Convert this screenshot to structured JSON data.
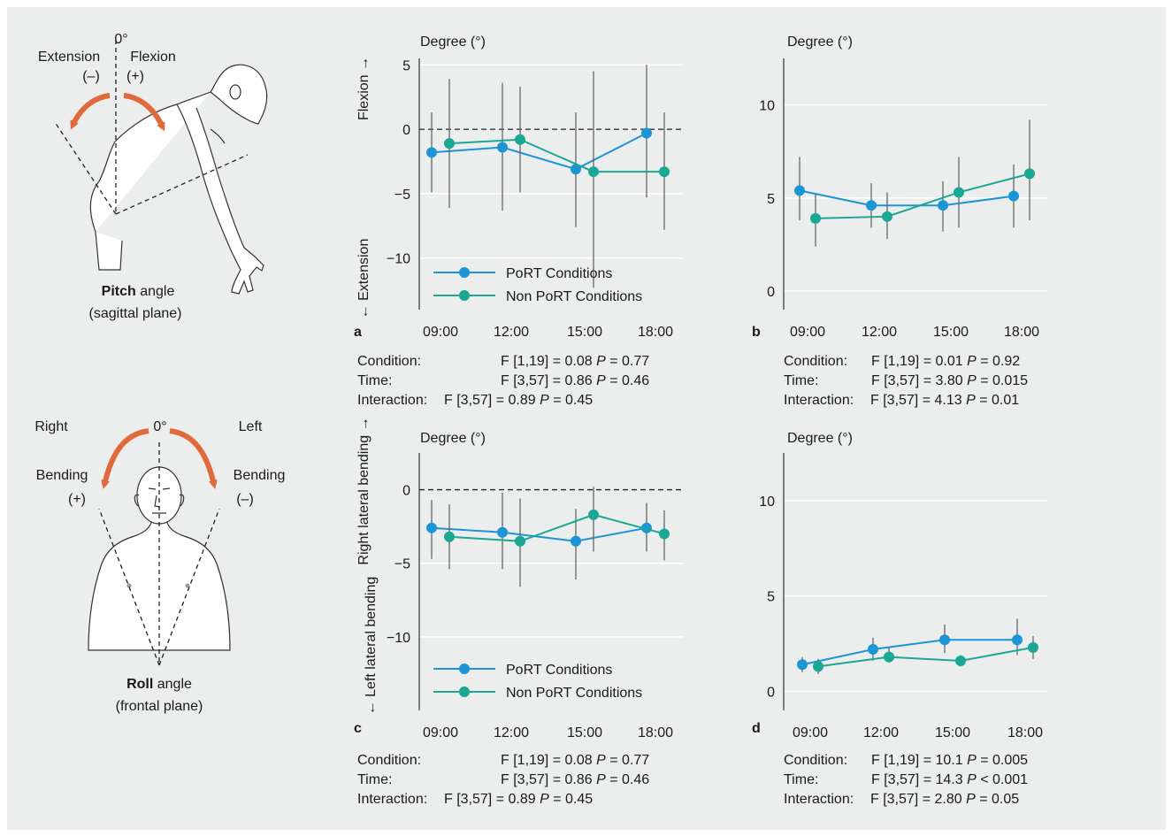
{
  "colors": {
    "port": "#1b95d6",
    "non_port": "#1aa793",
    "arrow": "#e06a3c",
    "grid": "#ffffff",
    "whisker": "#666666"
  },
  "pitch_illustration": {
    "zero_label": "0°",
    "extension_label": "Extension",
    "extension_sign": "(–)",
    "flexion_label": "Flexion",
    "flexion_sign": "(+)",
    "caption_bold": "Pitch",
    "caption_rest": " angle",
    "caption_line2": "(sagittal plane)"
  },
  "roll_illustration": {
    "zero_label": "0°",
    "right_label_1": "Right",
    "right_label_2": "Bending",
    "right_sign": "(+)",
    "left_label_1": "Left",
    "left_label_2": "Bending",
    "left_sign": "(–)",
    "caption_bold": "Roll",
    "caption_rest": " angle",
    "caption_line2": "(frontal plane)"
  },
  "chart_data": [
    {
      "id": "a",
      "type": "line",
      "panel_letter": "a",
      "ylabel": "Degree (°)",
      "y_side_label_top": "Flexion →",
      "y_side_label_bottom": "← Extension",
      "ylim": [
        -14,
        5.5
      ],
      "yticks": [
        5,
        0,
        -5,
        -10
      ],
      "categories": [
        "09:00",
        "12:00",
        "15:00",
        "18:00"
      ],
      "zero_dashed": true,
      "legend": [
        "PoRT Conditions",
        "Non PoRT Conditions"
      ],
      "series": [
        {
          "name": "PoRT Conditions",
          "values": [
            -1.8,
            -1.4,
            -3.1,
            -0.3
          ],
          "err_low": [
            -4.9,
            -6.3,
            -7.6,
            -5.3
          ],
          "err_high": [
            1.3,
            3.6,
            1.3,
            5.0
          ]
        },
        {
          "name": "Non PoRT Conditions",
          "values": [
            -1.1,
            -0.8,
            -3.3,
            -3.3
          ],
          "err_low": [
            -6.1,
            -4.9,
            -12.3,
            -7.8
          ],
          "err_high": [
            3.9,
            3.3,
            4.5,
            1.3
          ]
        }
      ],
      "stats": [
        {
          "label": "Condition:",
          "value": "F [1,19] = 0.08 ",
          "p": "P",
          "pval": " = 0.77"
        },
        {
          "label": "Time:",
          "value": "F [3,57] = 0.86 ",
          "p": "P",
          "pval": " = 0.46"
        },
        {
          "label": "Interaction:",
          "value": "F [3,57] = 0.89 ",
          "p": "P",
          "pval": " = 0.45"
        }
      ]
    },
    {
      "id": "b",
      "type": "line",
      "panel_letter": "b",
      "ylabel": "Degree (°)",
      "ylim": [
        -1,
        12.5
      ],
      "yticks": [
        10,
        5,
        0
      ],
      "categories": [
        "09:00",
        "12:00",
        "15:00",
        "18:00"
      ],
      "zero_dashed": false,
      "series": [
        {
          "name": "PoRT Conditions",
          "values": [
            5.4,
            4.6,
            4.6,
            5.1
          ],
          "err_low": [
            3.8,
            3.4,
            3.2,
            3.4
          ],
          "err_high": [
            7.2,
            5.8,
            5.9,
            6.8
          ]
        },
        {
          "name": "Non PoRT Conditions",
          "values": [
            3.9,
            4.0,
            5.3,
            6.3
          ],
          "err_low": [
            2.4,
            2.8,
            3.4,
            3.8
          ],
          "err_high": [
            5.2,
            5.3,
            7.2,
            9.2
          ]
        }
      ],
      "stats": [
        {
          "label": "Condition:",
          "value": "F [1,19] = 0.01 ",
          "p": "P",
          "pval": " = 0.92"
        },
        {
          "label": "Time:",
          "value": "F [3,57] = 3.80 ",
          "p": "P",
          "pval": " = 0.015"
        },
        {
          "label": "Interaction:",
          "value": "F [3,57] = 4.13 ",
          "p": "P",
          "pval": " = 0.01"
        }
      ]
    },
    {
      "id": "c",
      "type": "line",
      "panel_letter": "c",
      "ylabel": "Degree (°)",
      "y_side_label_top": "Right lateral bending →",
      "y_side_label_bottom": "← Left lateral bending",
      "ylim": [
        -15,
        2.5
      ],
      "yticks": [
        0,
        -5,
        -10
      ],
      "categories": [
        "09:00",
        "12:00",
        "15:00",
        "18:00"
      ],
      "zero_dashed": true,
      "legend": [
        "PoRT Conditions",
        "Non PoRT Conditions"
      ],
      "series": [
        {
          "name": "PoRT Conditions",
          "values": [
            -2.6,
            -2.9,
            -3.5,
            -2.6
          ],
          "err_low": [
            -4.7,
            -5.4,
            -6.1,
            -4.2
          ],
          "err_high": [
            -0.7,
            -0.2,
            -1.3,
            -0.9
          ]
        },
        {
          "name": "Non PoRT Conditions",
          "values": [
            -3.2,
            -3.5,
            -1.7,
            -3.0
          ],
          "err_low": [
            -5.4,
            -6.6,
            -4.2,
            -4.8
          ],
          "err_high": [
            -1.0,
            -0.6,
            0.2,
            -1.4
          ]
        }
      ],
      "stats": [
        {
          "label": "Condition:",
          "value": "F [1,19] = 0.08 ",
          "p": "P",
          "pval": " = 0.77"
        },
        {
          "label": "Time:",
          "value": "F [3,57] = 0.86 ",
          "p": "P",
          "pval": " = 0.46"
        },
        {
          "label": "Interaction:",
          "value": "F [3,57] = 0.89 ",
          "p": "P",
          "pval": " = 0.45"
        }
      ]
    },
    {
      "id": "d",
      "type": "line",
      "panel_letter": "d",
      "ylabel": "Degree (°)",
      "ylim": [
        -1,
        12.5
      ],
      "yticks": [
        10,
        5,
        0
      ],
      "categories": [
        "09:00",
        "12:00",
        "15:00",
        "18:00"
      ],
      "zero_dashed": false,
      "series": [
        {
          "name": "PoRT Conditions",
          "values": [
            1.4,
            2.2,
            2.7,
            2.7
          ],
          "err_low": [
            1.0,
            1.6,
            2.0,
            1.9
          ],
          "err_high": [
            1.8,
            2.8,
            3.5,
            3.8
          ]
        },
        {
          "name": "Non PoRT Conditions",
          "values": [
            1.3,
            1.8,
            1.6,
            2.3
          ],
          "err_low": [
            0.9,
            1.5,
            1.3,
            1.7
          ],
          "err_high": [
            1.7,
            2.3,
            1.9,
            2.9
          ]
        }
      ],
      "stats": [
        {
          "label": "Condition:",
          "value": "F [1,19] = 10.1 ",
          "p": "P",
          "pval": " = 0.005"
        },
        {
          "label": "Time:",
          "value": "F [3,57] = 14.3 ",
          "p": "P",
          "pval": " < 0.001"
        },
        {
          "label": "Interaction:",
          "value": "F [3,57] = 2.80 ",
          "p": "P",
          "pval": " = 0.05"
        }
      ]
    }
  ]
}
